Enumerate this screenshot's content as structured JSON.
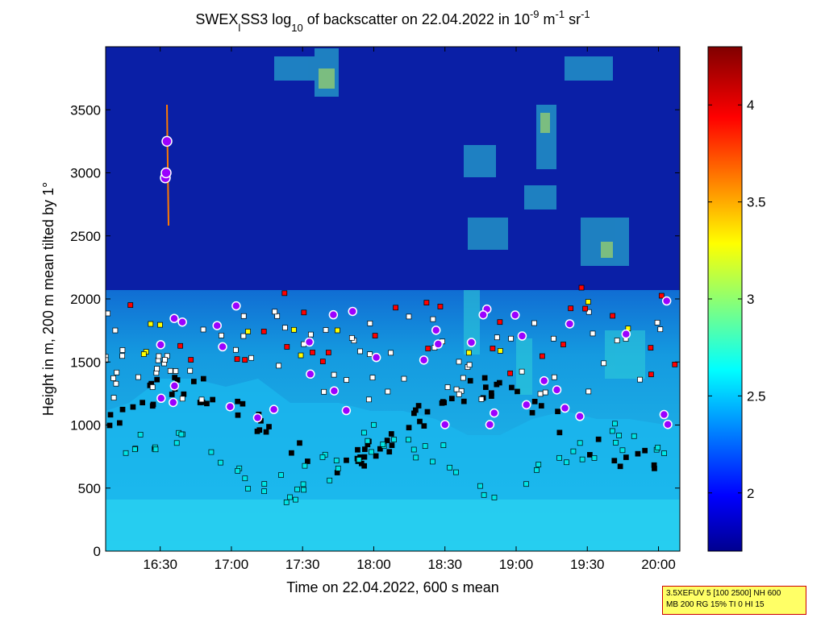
{
  "chart_data": {
    "type": "heatmap",
    "title_parts": {
      "prefix": "SWEX",
      "sub_l": "l",
      "mid": "SS3 log",
      "sub_10": "10",
      "rest": " of backscatter on 22.04.2022 in 10",
      "sup_m9": "-9",
      "unit_m": " m",
      "sup_m1a": "-1",
      "unit_sr": " sr",
      "sup_m1b": "-1"
    },
    "xlabel": "Time on 22.04.2022, 600 s mean",
    "ylabel": "Height in m, 200 m mean tilted by 1°",
    "xlim": [
      "16:07",
      "20:09"
    ],
    "ylim": [
      0,
      4000
    ],
    "x_ticks": [
      "16:30",
      "17:00",
      "17:30",
      "18:00",
      "18:30",
      "19:00",
      "19:30",
      "20:00"
    ],
    "y_ticks": [
      0,
      500,
      1000,
      1500,
      2000,
      2500,
      3000,
      3500
    ],
    "colorbar": {
      "colormap": "jet",
      "range": [
        1.7,
        4.3
      ],
      "ticks": [
        "2",
        "2.5",
        "3",
        "3.5",
        "4"
      ]
    },
    "marker_legend_colors": {
      "base": "#000000",
      "lower": "#00e5e5",
      "cloud": "#ffffff",
      "strong": "#ff0000",
      "upper": "#ffff00",
      "extra": "#ff00ff",
      "aggregate": "#9b00ff"
    }
  },
  "info_box": {
    "line1": "3.5XEFUV 5 [100 2500] NH 600",
    "line2": "MB 200 RG 15% TI 0 HI 15"
  }
}
